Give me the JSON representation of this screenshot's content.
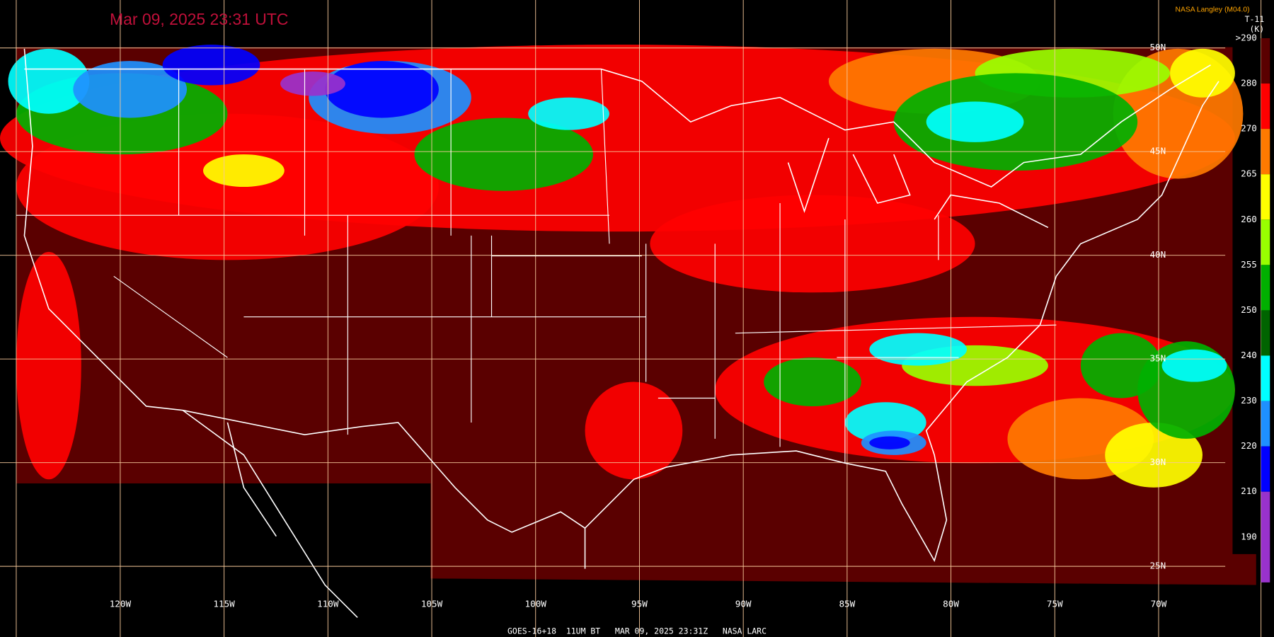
{
  "header": {
    "title": "Mar 09, 2025 23:31 UTC",
    "credit": "NASA Langley (M04.0)"
  },
  "colorbar": {
    "name": "T-11",
    "unit": "(K)",
    "labels": [
      ">290",
      "280",
      "270",
      "265",
      "260",
      "255",
      "250",
      "240",
      "230",
      "220",
      "210",
      "190"
    ],
    "colors": [
      "#5a0000",
      "#ff0000",
      "#ff7a00",
      "#ffff00",
      "#99ff00",
      "#00b000",
      "#006400",
      "#00ffff",
      "#1e90ff",
      "#0000ff",
      "#9932cc"
    ]
  },
  "longitude_labels": [
    "120W",
    "115W",
    "110W",
    "105W",
    "100W",
    "95W",
    "90W",
    "85W",
    "80W",
    "75W",
    "70W"
  ],
  "latitude_labels": [
    "50N",
    "45N",
    "40N",
    "35N",
    "30N",
    "25N"
  ],
  "footer": "GOES-16+18  11UM BT   MAR 09, 2025 23:31Z   NASA LARC"
}
